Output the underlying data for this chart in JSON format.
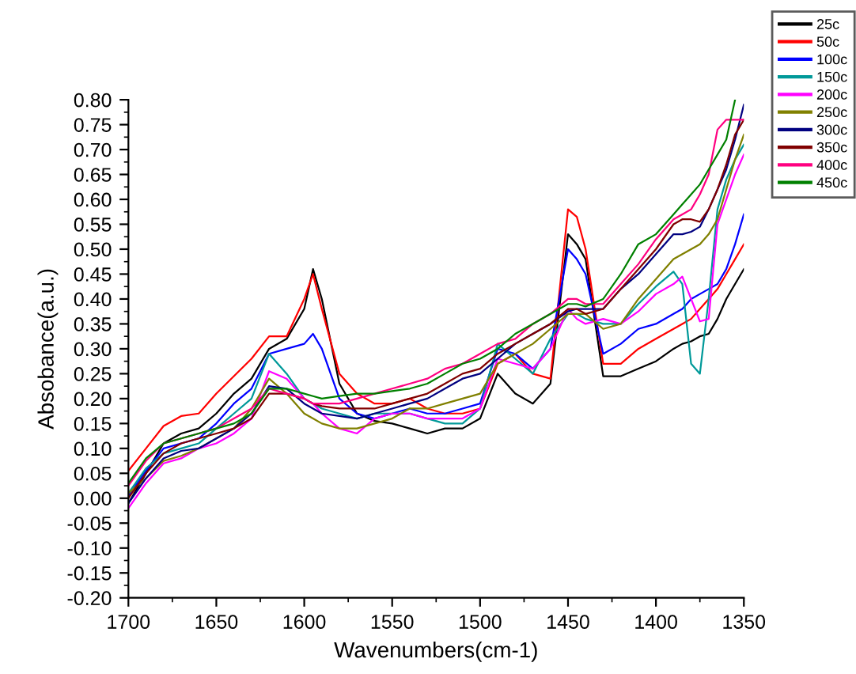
{
  "chart_data": {
    "type": "line",
    "xlabel": "Wavenumbers(cm-1)",
    "ylabel": "Absobance(a.u.)",
    "x": [
      1700,
      1690,
      1680,
      1670,
      1660,
      1650,
      1640,
      1630,
      1620,
      1610,
      1600,
      1595,
      1590,
      1580,
      1570,
      1560,
      1550,
      1540,
      1530,
      1520,
      1510,
      1500,
      1490,
      1480,
      1470,
      1460,
      1450,
      1445,
      1440,
      1430,
      1420,
      1410,
      1400,
      1390,
      1385,
      1380,
      1375,
      1370,
      1365,
      1360,
      1355,
      1350
    ],
    "xlim": [
      1700,
      1350
    ],
    "xticks": [
      1700,
      1650,
      1600,
      1550,
      1500,
      1450,
      1400,
      1350
    ],
    "ylim": [
      -0.2,
      0.8
    ],
    "yticks": [
      {
        "value": -0.2,
        "label": "-0.20"
      },
      {
        "value": -0.15,
        "label": "-0.15"
      },
      {
        "value": -0.1,
        "label": "-0.10"
      },
      {
        "value": -0.05,
        "label": "-0.05"
      },
      {
        "value": 0,
        "label": "0.00"
      },
      {
        "value": 0.05,
        "label": "0.05"
      },
      {
        "value": 0.1,
        "label": "0.10"
      },
      {
        "value": 0.15,
        "label": "0.15"
      },
      {
        "value": 0.2,
        "label": "0.20"
      },
      {
        "value": 0.25,
        "label": "0.25"
      },
      {
        "value": 0.3,
        "label": "0.30"
      },
      {
        "value": 0.35,
        "label": "0.35"
      },
      {
        "value": 0.4,
        "label": "0.40"
      },
      {
        "value": 0.45,
        "label": "0.45"
      },
      {
        "value": 0.5,
        "label": "0.50"
      },
      {
        "value": 0.55,
        "label": "0.55"
      },
      {
        "value": 0.6,
        "label": "0.60"
      },
      {
        "value": 0.65,
        "label": "0.65"
      },
      {
        "value": 0.7,
        "label": "0.70"
      },
      {
        "value": 0.75,
        "label": "0.75"
      },
      {
        "value": 0.8,
        "label": "0.80"
      }
    ],
    "grid": false,
    "legend": "top right",
    "marker": "none",
    "line_style": "solid",
    "series": [
      {
        "name": "25c",
        "color": "#000000",
        "values": [
          -0.01,
          0.05,
          0.11,
          0.13,
          0.14,
          0.17,
          0.21,
          0.24,
          0.3,
          0.32,
          0.38,
          0.46,
          0.4,
          0.23,
          0.17,
          0.155,
          0.15,
          0.14,
          0.13,
          0.14,
          0.14,
          0.16,
          0.25,
          0.21,
          0.19,
          0.23,
          0.53,
          0.51,
          0.48,
          0.245,
          0.245,
          0.26,
          0.275,
          0.3,
          0.31,
          0.315,
          0.325,
          0.33,
          0.36,
          0.4,
          0.43,
          0.46
        ]
      },
      {
        "name": "50c",
        "color": "#ff0000",
        "values": [
          0.055,
          0.1,
          0.145,
          0.165,
          0.17,
          0.21,
          0.245,
          0.28,
          0.325,
          0.325,
          0.4,
          0.45,
          0.38,
          0.25,
          0.21,
          0.19,
          0.19,
          0.2,
          0.18,
          0.17,
          0.17,
          0.18,
          0.27,
          0.29,
          0.25,
          0.24,
          0.58,
          0.565,
          0.5,
          0.27,
          0.27,
          0.3,
          0.32,
          0.34,
          0.35,
          0.36,
          0.38,
          0.4,
          0.42,
          0.45,
          0.48,
          0.51
        ]
      },
      {
        "name": "100c",
        "color": "#0000ff",
        "values": [
          0.005,
          0.055,
          0.1,
          0.11,
          0.12,
          0.15,
          0.19,
          0.22,
          0.29,
          0.3,
          0.31,
          0.33,
          0.3,
          0.2,
          0.17,
          0.16,
          0.17,
          0.18,
          0.17,
          0.17,
          0.18,
          0.19,
          0.3,
          0.29,
          0.26,
          0.3,
          0.5,
          0.48,
          0.45,
          0.29,
          0.31,
          0.34,
          0.35,
          0.37,
          0.38,
          0.4,
          0.41,
          0.42,
          0.43,
          0.46,
          0.51,
          0.57
        ]
      },
      {
        "name": "150c",
        "color": "#009999",
        "values": [
          0.01,
          0.06,
          0.09,
          0.1,
          0.11,
          0.14,
          0.17,
          0.2,
          0.29,
          0.25,
          0.2,
          0.19,
          0.18,
          0.17,
          0.16,
          0.17,
          0.17,
          0.17,
          0.16,
          0.15,
          0.15,
          0.18,
          0.31,
          0.28,
          0.25,
          0.32,
          0.37,
          0.37,
          0.36,
          0.35,
          0.35,
          0.39,
          0.425,
          0.455,
          0.43,
          0.27,
          0.25,
          0.4,
          0.58,
          0.64,
          0.68,
          0.71
        ]
      },
      {
        "name": "200c",
        "color": "#ff00ff",
        "values": [
          -0.02,
          0.03,
          0.07,
          0.08,
          0.1,
          0.11,
          0.13,
          0.16,
          0.255,
          0.24,
          0.2,
          0.19,
          0.17,
          0.14,
          0.13,
          0.16,
          0.17,
          0.17,
          0.16,
          0.16,
          0.16,
          0.18,
          0.28,
          0.27,
          0.26,
          0.3,
          0.38,
          0.36,
          0.35,
          0.36,
          0.35,
          0.375,
          0.41,
          0.43,
          0.445,
          0.4,
          0.355,
          0.36,
          0.55,
          0.6,
          0.65,
          0.69
        ]
      },
      {
        "name": "250c",
        "color": "#808000",
        "values": [
          0.01,
          0.04,
          0.075,
          0.085,
          0.1,
          0.12,
          0.14,
          0.18,
          0.24,
          0.21,
          0.17,
          0.16,
          0.15,
          0.14,
          0.14,
          0.15,
          0.16,
          0.18,
          0.18,
          0.19,
          0.2,
          0.21,
          0.27,
          0.29,
          0.31,
          0.34,
          0.37,
          0.37,
          0.37,
          0.34,
          0.35,
          0.4,
          0.44,
          0.48,
          0.49,
          0.5,
          0.51,
          0.53,
          0.56,
          0.62,
          0.68,
          0.73
        ]
      },
      {
        "name": "300c",
        "color": "#000080",
        "values": [
          -0.01,
          0.04,
          0.08,
          0.095,
          0.1,
          0.12,
          0.14,
          0.17,
          0.225,
          0.22,
          0.19,
          0.18,
          0.17,
          0.165,
          0.16,
          0.17,
          0.18,
          0.19,
          0.2,
          0.22,
          0.24,
          0.25,
          0.28,
          0.31,
          0.33,
          0.35,
          0.375,
          0.38,
          0.38,
          0.38,
          0.42,
          0.45,
          0.49,
          0.53,
          0.53,
          0.535,
          0.545,
          0.58,
          0.62,
          0.66,
          0.72,
          0.79
        ]
      },
      {
        "name": "350c",
        "color": "#800000",
        "values": [
          0.0,
          0.05,
          0.09,
          0.11,
          0.12,
          0.13,
          0.14,
          0.16,
          0.21,
          0.21,
          0.2,
          0.19,
          0.185,
          0.18,
          0.18,
          0.18,
          0.19,
          0.2,
          0.21,
          0.23,
          0.25,
          0.26,
          0.29,
          0.31,
          0.33,
          0.35,
          0.38,
          0.38,
          0.37,
          0.38,
          0.42,
          0.46,
          0.5,
          0.55,
          0.56,
          0.56,
          0.555,
          0.58,
          0.62,
          0.67,
          0.73,
          0.76
        ]
      },
      {
        "name": "400c",
        "color": "#ff0080",
        "values": [
          0.025,
          0.075,
          0.11,
          0.12,
          0.13,
          0.14,
          0.16,
          0.18,
          0.22,
          0.21,
          0.2,
          0.19,
          0.19,
          0.19,
          0.2,
          0.21,
          0.22,
          0.23,
          0.24,
          0.26,
          0.27,
          0.29,
          0.31,
          0.32,
          0.35,
          0.37,
          0.4,
          0.4,
          0.39,
          0.39,
          0.43,
          0.47,
          0.52,
          0.56,
          0.57,
          0.58,
          0.61,
          0.65,
          0.74,
          0.76,
          0.76,
          0.76
        ]
      },
      {
        "name": "450c",
        "color": "#008000",
        "values": [
          0.03,
          0.08,
          0.11,
          0.12,
          0.13,
          0.14,
          0.15,
          0.17,
          0.22,
          0.22,
          0.21,
          0.205,
          0.2,
          0.205,
          0.21,
          0.21,
          0.215,
          0.22,
          0.23,
          0.25,
          0.27,
          0.28,
          0.3,
          0.33,
          0.35,
          0.37,
          0.39,
          0.39,
          0.385,
          0.4,
          0.45,
          0.51,
          0.53,
          0.57,
          0.59,
          0.61,
          0.63,
          0.66,
          0.69,
          0.72,
          0.8,
          null
        ]
      }
    ]
  }
}
